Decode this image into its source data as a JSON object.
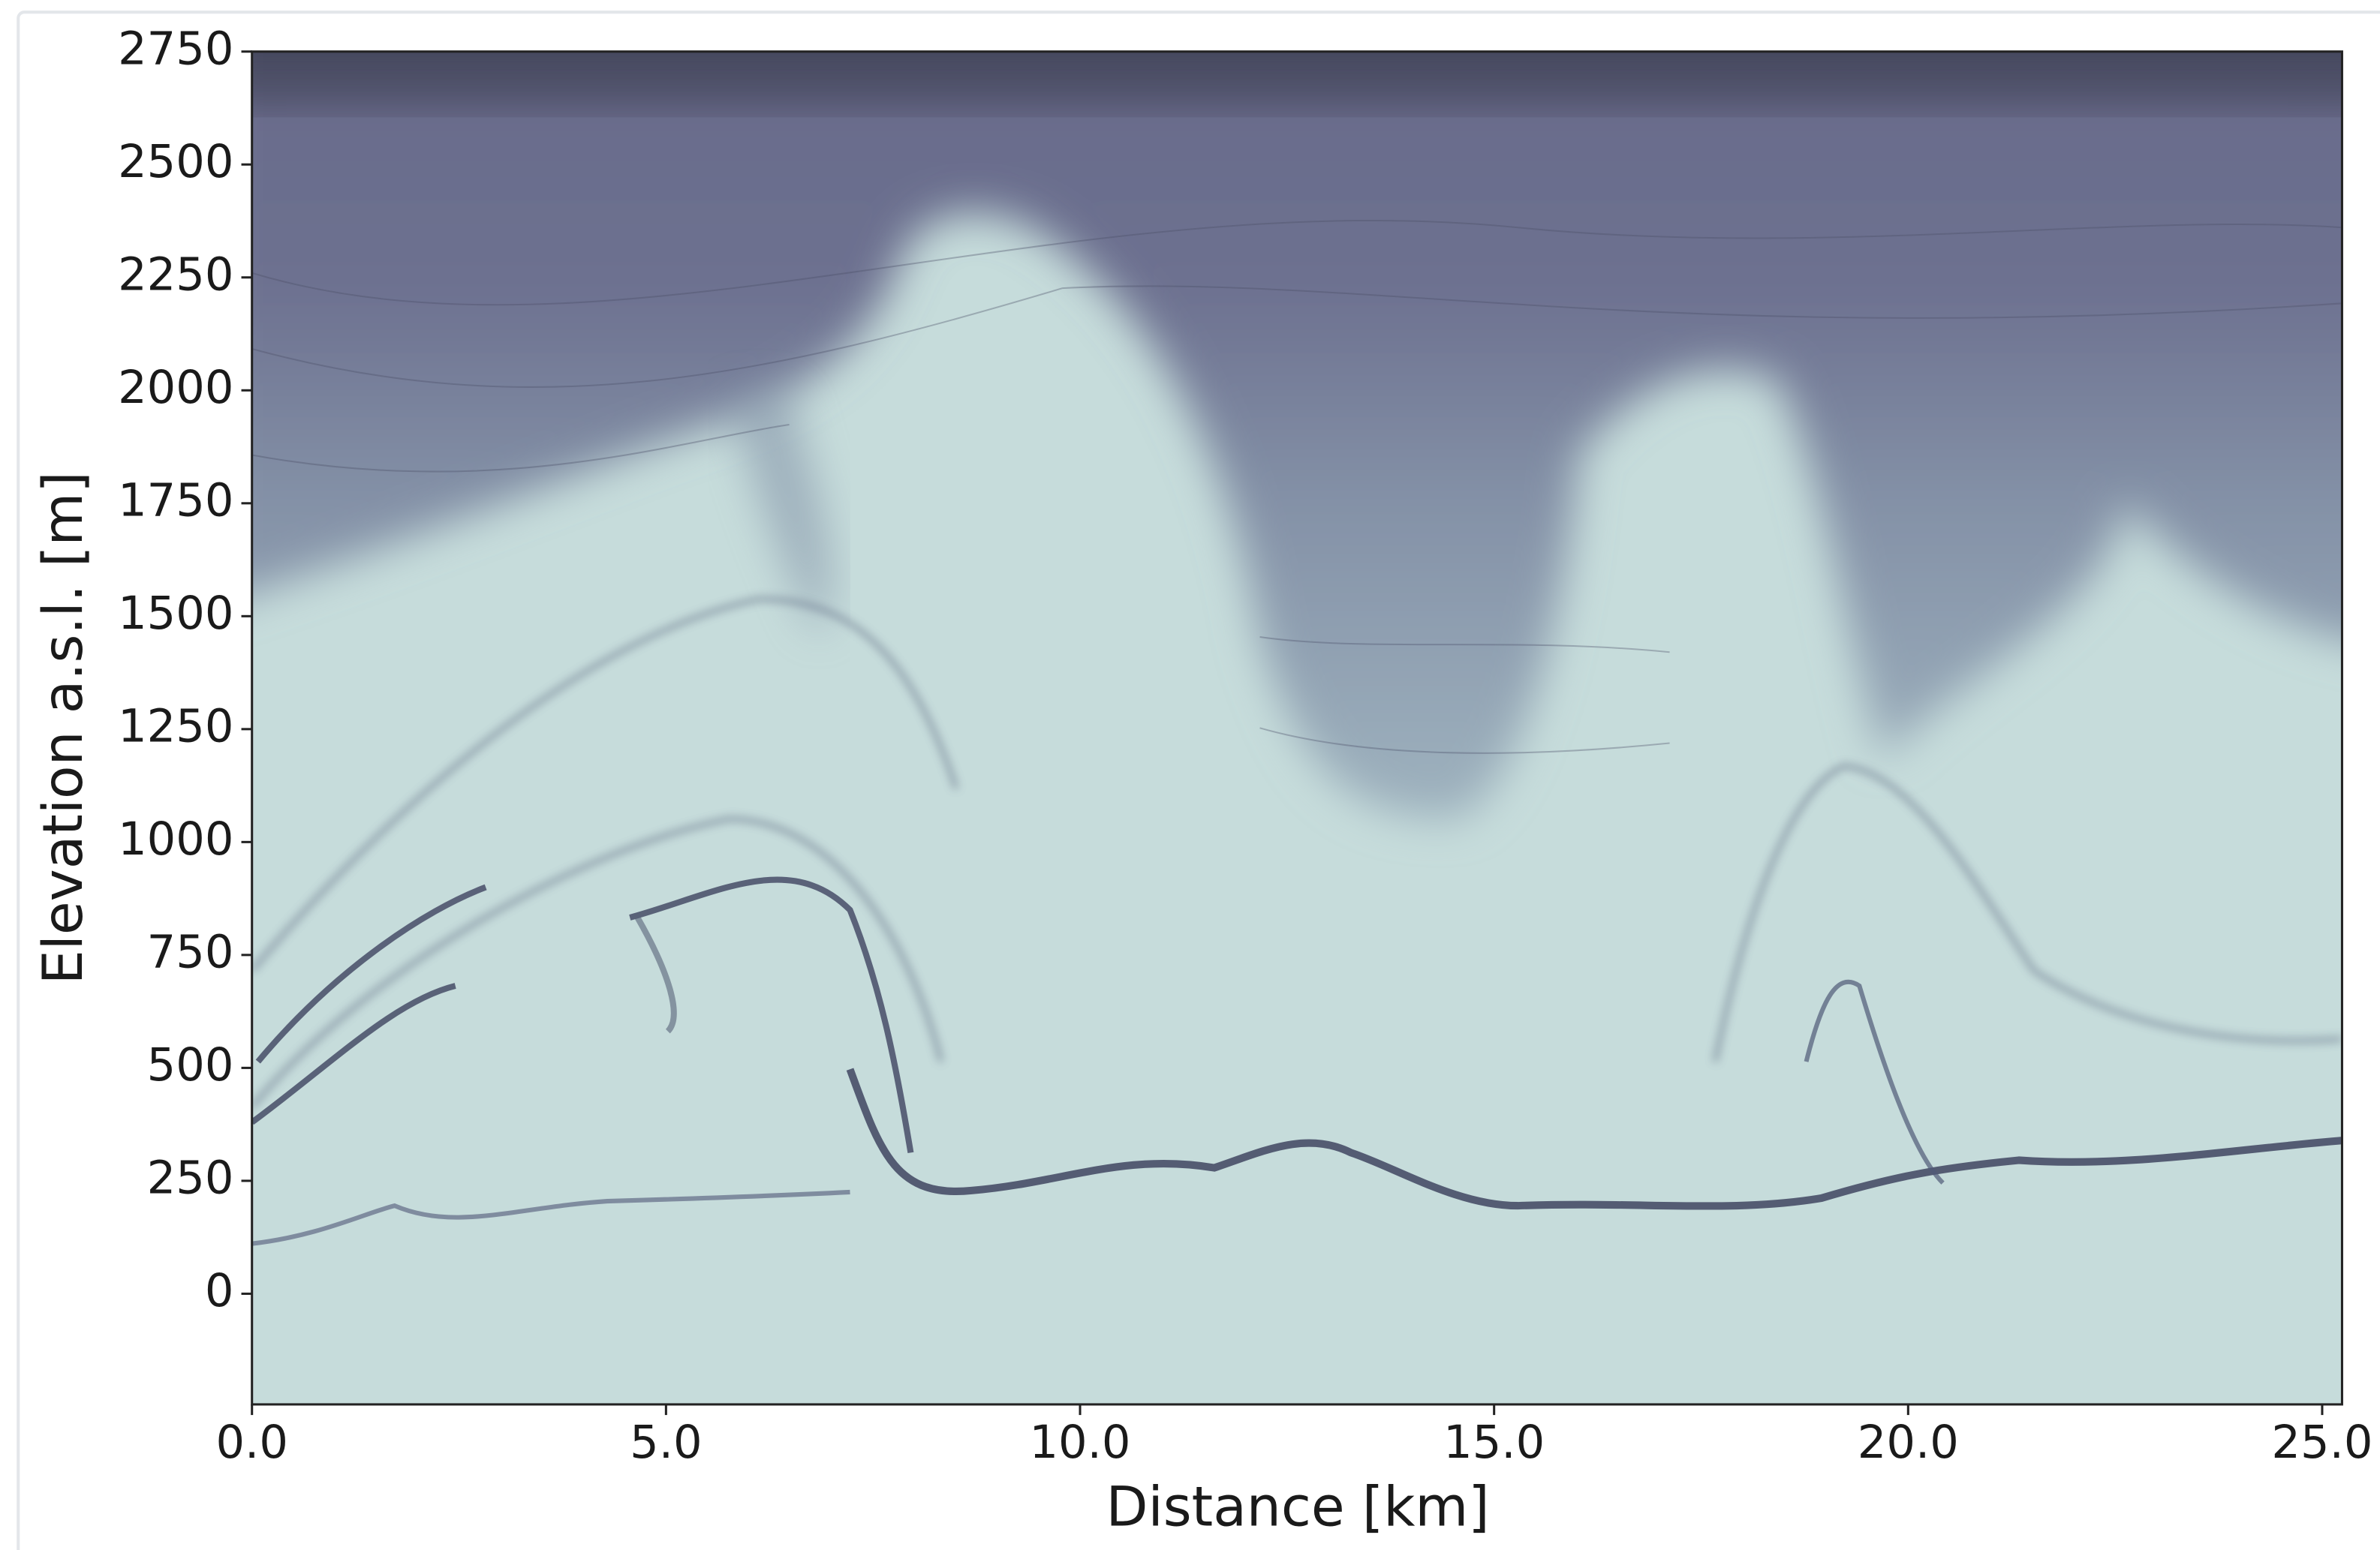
{
  "chart_data": {
    "type": "radargram",
    "x_label": "Distance [km]",
    "y_label": "Elevation a.s.l. [m]",
    "xlim": [
      0,
      25.24
    ],
    "ylim": [
      -245,
      2750
    ],
    "xticks": [
      {
        "value": 0,
        "label": "0.0"
      },
      {
        "value": 5,
        "label": "5.0"
      },
      {
        "value": 10,
        "label": "10.0"
      },
      {
        "value": 15,
        "label": "15.0"
      },
      {
        "value": 20,
        "label": "20.0"
      },
      {
        "value": 25,
        "label": "25.0"
      }
    ],
    "yticks": [
      0,
      250,
      500,
      750,
      1000,
      1250,
      1500,
      1750,
      2000,
      2250,
      2500,
      2750
    ]
  }
}
